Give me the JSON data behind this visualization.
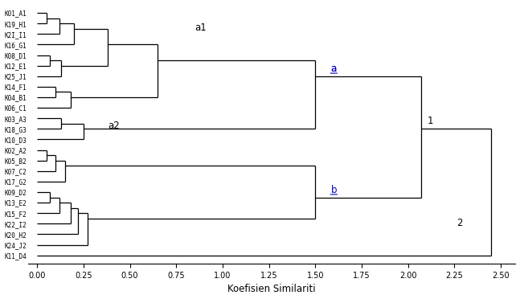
{
  "labels": [
    "K01_A1",
    "K19_H1",
    "K2I_I1",
    "K16_G1",
    "K08_D1",
    "K12_E1",
    "K25_J1",
    "K14_F1",
    "K04_B1",
    "K06_C1",
    "K03_A3",
    "K18_G3",
    "K10_D3",
    "K02_A2",
    "K05_B2",
    "K07_C2",
    "K17_G2",
    "K09_D2",
    "K13_E2",
    "K15_F2",
    "K22_I2",
    "K20_H2",
    "K24_J2",
    "K11_D4"
  ],
  "xlabel": "Koefisien Similariti",
  "xticks": [
    0.0,
    0.25,
    0.5,
    0.75,
    1.0,
    1.25,
    1.5,
    1.75,
    2.0,
    2.25,
    2.5
  ],
  "line_color": "#000000",
  "annot_color": "#0000bb",
  "lw": 0.9,
  "label_fontsize": 5.5,
  "tick_fontsize": 7.0,
  "xlabel_fontsize": 8.5,
  "annot_fontsize": 8.5
}
